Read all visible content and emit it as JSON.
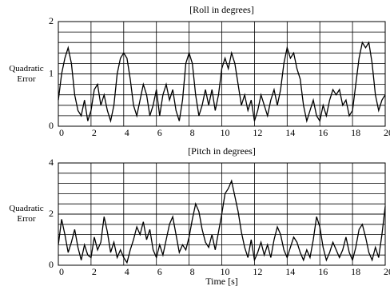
{
  "chart_data": [
    {
      "type": "line",
      "title": "[Roll in degrees]",
      "ylabel": "Quadratic Error",
      "xlim": [
        0,
        20
      ],
      "xticks": [
        0,
        2,
        4,
        6,
        8,
        10,
        12,
        14,
        16,
        18,
        20
      ],
      "ylim": [
        0,
        2
      ],
      "yticks": [
        0,
        1,
        2
      ],
      "ygrid": [
        0.2,
        0.4,
        0.6,
        0.8,
        1,
        1.2,
        1.4,
        1.6,
        1.8
      ],
      "grid": true,
      "x": [
        0,
        0.2,
        0.4,
        0.6,
        0.8,
        1,
        1.2,
        1.4,
        1.6,
        1.8,
        2,
        2.2,
        2.4,
        2.6,
        2.8,
        3,
        3.2,
        3.4,
        3.6,
        3.8,
        4,
        4.2,
        4.4,
        4.6,
        4.8,
        5,
        5.2,
        5.4,
        5.6,
        5.8,
        6,
        6.2,
        6.4,
        6.6,
        6.8,
        7,
        7.2,
        7.4,
        7.6,
        7.8,
        8,
        8.2,
        8.4,
        8.6,
        8.8,
        9,
        9.2,
        9.4,
        9.6,
        9.8,
        10,
        10.2,
        10.4,
        10.6,
        10.8,
        11,
        11.2,
        11.4,
        11.6,
        11.8,
        12,
        12.2,
        12.4,
        12.6,
        12.8,
        13,
        13.2,
        13.4,
        13.6,
        13.8,
        14,
        14.2,
        14.4,
        14.6,
        14.8,
        15,
        15.2,
        15.4,
        15.6,
        15.8,
        16,
        16.2,
        16.4,
        16.6,
        16.8,
        17,
        17.2,
        17.4,
        17.6,
        17.8,
        18,
        18.2,
        18.4,
        18.6,
        18.8,
        19,
        19.2,
        19.4,
        19.6,
        19.8,
        20
      ],
      "series": [
        {
          "color": "#000000",
          "values": [
            0.5,
            1.0,
            1.3,
            1.5,
            1.2,
            0.6,
            0.3,
            0.2,
            0.5,
            0.1,
            0.3,
            0.7,
            0.8,
            0.4,
            0.6,
            0.3,
            0.1,
            0.4,
            1.0,
            1.3,
            1.4,
            1.3,
            0.9,
            0.4,
            0.2,
            0.5,
            0.8,
            0.6,
            0.2,
            0.4,
            0.7,
            0.2,
            0.6,
            0.8,
            0.5,
            0.7,
            0.3,
            0.1,
            0.5,
            1.2,
            1.4,
            1.2,
            0.6,
            0.2,
            0.4,
            0.7,
            0.4,
            0.7,
            0.3,
            0.6,
            1.1,
            1.3,
            1.1,
            1.4,
            1.2,
            0.8,
            0.4,
            0.6,
            0.3,
            0.5,
            0.1,
            0.3,
            0.6,
            0.4,
            0.2,
            0.5,
            0.7,
            0.4,
            0.7,
            1.2,
            1.5,
            1.3,
            1.4,
            1.1,
            0.9,
            0.4,
            0.1,
            0.3,
            0.5,
            0.2,
            0.1,
            0.4,
            0.2,
            0.5,
            0.7,
            0.6,
            0.7,
            0.4,
            0.5,
            0.2,
            0.3,
            0.8,
            1.3,
            1.6,
            1.5,
            1.6,
            1.2,
            0.6,
            0.3,
            0.5,
            0.6
          ]
        }
      ]
    },
    {
      "type": "line",
      "title": "[Pitch in degrees]",
      "ylabel": "Quadratic Error",
      "xlabel": "Time [s]",
      "xlim": [
        0,
        20
      ],
      "xticks": [
        0,
        2,
        4,
        6,
        8,
        10,
        12,
        14,
        16,
        18,
        20
      ],
      "ylim": [
        0,
        4
      ],
      "yticks": [
        0,
        2,
        4
      ],
      "ygrid": [
        0.4,
        0.8,
        1.2,
        1.6,
        2,
        2.4,
        2.8,
        3.2,
        3.6
      ],
      "grid": true,
      "x": [
        0,
        0.2,
        0.4,
        0.6,
        0.8,
        1,
        1.2,
        1.4,
        1.6,
        1.8,
        2,
        2.2,
        2.4,
        2.6,
        2.8,
        3,
        3.2,
        3.4,
        3.6,
        3.8,
        4,
        4.2,
        4.4,
        4.6,
        4.8,
        5,
        5.2,
        5.4,
        5.6,
        5.8,
        6,
        6.2,
        6.4,
        6.6,
        6.8,
        7,
        7.2,
        7.4,
        7.6,
        7.8,
        8,
        8.2,
        8.4,
        8.6,
        8.8,
        9,
        9.2,
        9.4,
        9.6,
        9.8,
        10,
        10.2,
        10.4,
        10.6,
        10.8,
        11,
        11.2,
        11.4,
        11.6,
        11.8,
        12,
        12.2,
        12.4,
        12.6,
        12.8,
        13,
        13.2,
        13.4,
        13.6,
        13.8,
        14,
        14.2,
        14.4,
        14.6,
        14.8,
        15,
        15.2,
        15.4,
        15.6,
        15.8,
        16,
        16.2,
        16.4,
        16.6,
        16.8,
        17,
        17.2,
        17.4,
        17.6,
        17.8,
        18,
        18.2,
        18.4,
        18.6,
        18.8,
        19,
        19.2,
        19.4,
        19.6,
        19.8,
        20
      ],
      "series": [
        {
          "color": "#000000",
          "values": [
            0.8,
            1.8,
            1.2,
            0.5,
            0.9,
            1.4,
            0.7,
            0.2,
            0.8,
            0.4,
            0.3,
            1.1,
            0.6,
            0.9,
            1.9,
            1.3,
            0.5,
            0.9,
            0.3,
            0.6,
            0.3,
            0.1,
            0.6,
            1.0,
            1.5,
            1.2,
            1.7,
            1.0,
            1.4,
            0.6,
            0.3,
            0.8,
            0.4,
            1.0,
            1.6,
            1.9,
            1.2,
            0.5,
            0.8,
            0.6,
            1.1,
            1.8,
            2.4,
            2.1,
            1.4,
            0.9,
            0.7,
            1.2,
            0.6,
            1.3,
            2.0,
            2.8,
            3.0,
            3.3,
            2.7,
            2.1,
            1.3,
            0.7,
            0.3,
            1.0,
            0.2,
            0.5,
            0.9,
            0.4,
            0.8,
            0.3,
            1.0,
            1.5,
            1.2,
            0.6,
            0.3,
            0.7,
            1.1,
            0.9,
            0.5,
            0.2,
            0.6,
            0.3,
            1.0,
            1.9,
            1.5,
            0.7,
            0.2,
            0.5,
            0.9,
            0.6,
            0.3,
            0.6,
            1.1,
            0.5,
            0.2,
            0.7,
            1.4,
            1.6,
            1.1,
            0.5,
            0.2,
            0.7,
            0.3,
            1.2,
            2.3
          ]
        }
      ]
    }
  ]
}
